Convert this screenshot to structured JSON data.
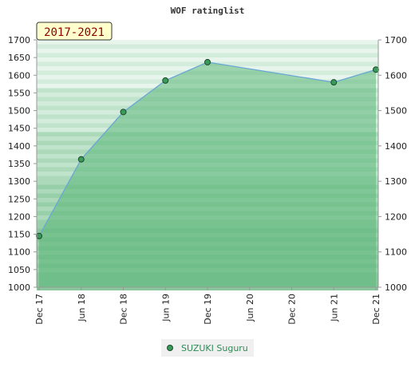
{
  "chart_data": {
    "type": "area",
    "title": "WOF ratinglist",
    "badge": "2017-2021",
    "x": [
      "Dec 17",
      "Jun 18",
      "Dec 18",
      "Jun 19",
      "Dec 19",
      "Jun 20",
      "Dec 20",
      "Jun 21",
      "Dec 21"
    ],
    "series": [
      {
        "name": "SUZUKI Suguru",
        "values": [
          1145,
          1362,
          1496,
          1585,
          1637,
          null,
          null,
          1580,
          1616
        ]
      }
    ],
    "ylim": [
      1000,
      1700
    ],
    "yticks_left": [
      1000,
      1050,
      1100,
      1150,
      1200,
      1250,
      1300,
      1350,
      1400,
      1450,
      1500,
      1550,
      1600,
      1650,
      1700
    ],
    "yticks_right": [
      1000,
      1100,
      1200,
      1300,
      1400,
      1500,
      1600,
      1700
    ],
    "legend": "bottom-center",
    "colors": {
      "line": "#6aa6d6",
      "fill": "#5cb87a",
      "marker": "#3a9a5a",
      "badge_bg": "#ffffcc",
      "legend_text": "#2e8b57"
    }
  }
}
